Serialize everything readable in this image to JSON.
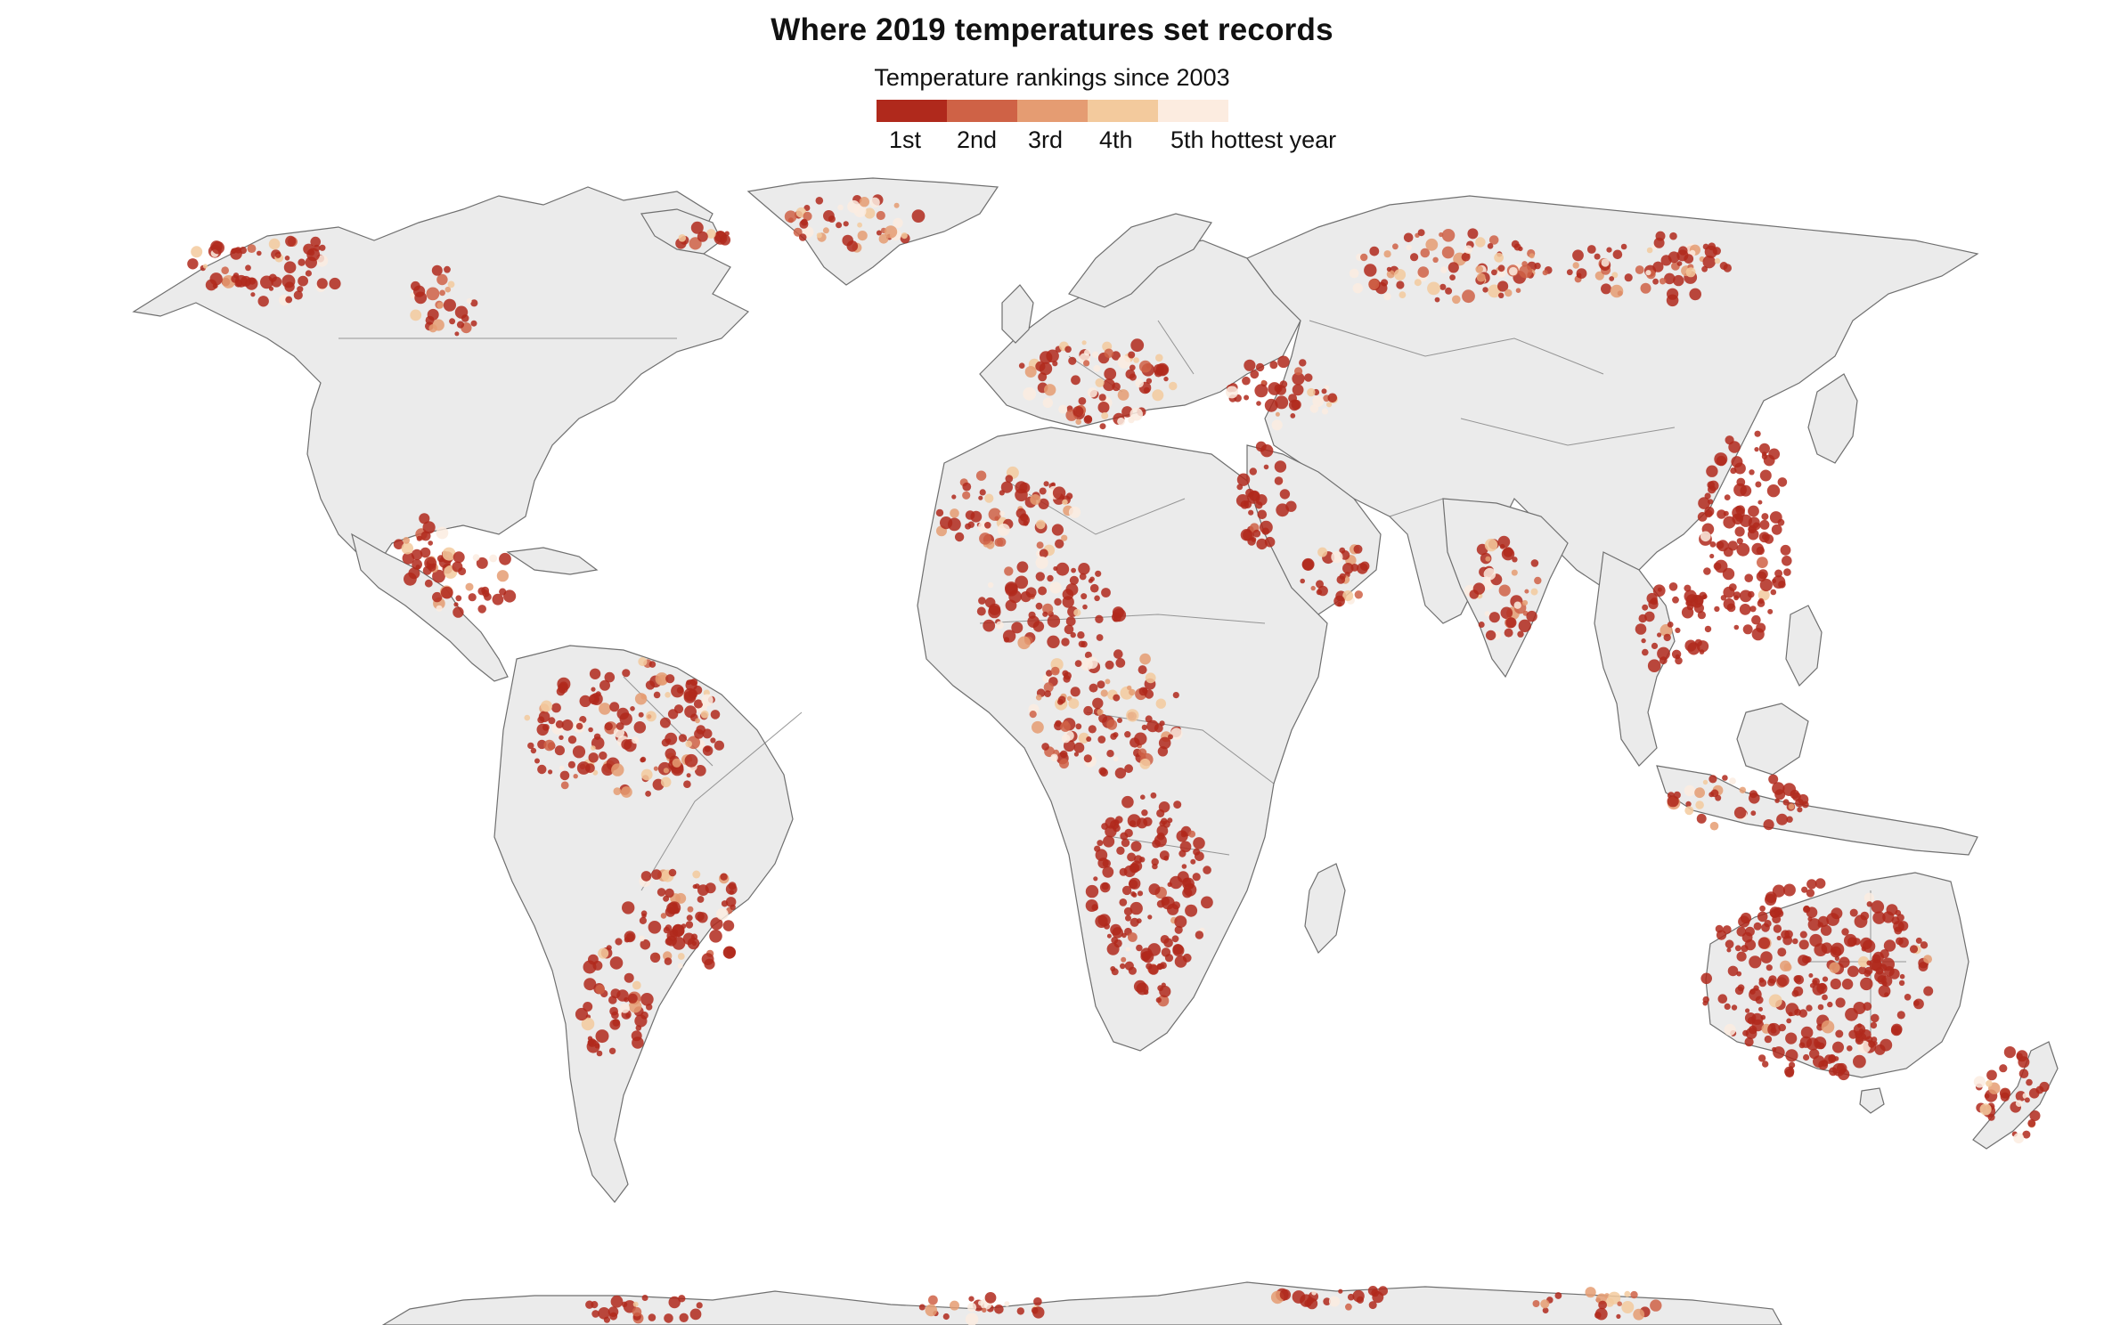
{
  "title": "Where 2019 temperatures set records",
  "subtitle": "Temperature rankings since 2003",
  "legend": {
    "items": [
      {
        "label": "1st",
        "color": "#b0291c"
      },
      {
        "label": "2nd",
        "color": "#cf6246"
      },
      {
        "label": "3rd",
        "color": "#e59c72"
      },
      {
        "label": "4th",
        "color": "#f3ca9d"
      },
      {
        "label": "5th hottest year",
        "color": "#fcece0"
      }
    ]
  },
  "colors": {
    "land": "#ebebeb",
    "land_shade": "#dcdcdc",
    "border": "#6f6f6f",
    "ocean": "#ffffff"
  }
}
